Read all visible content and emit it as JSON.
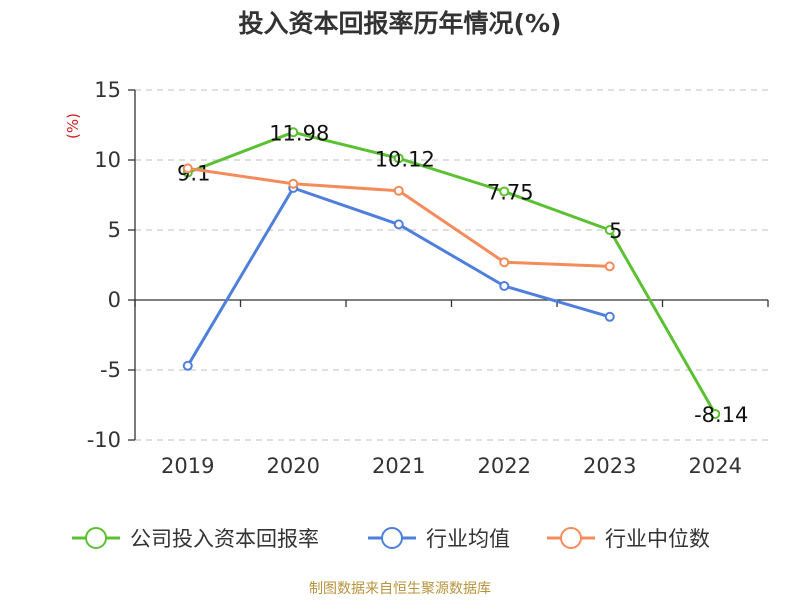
{
  "chart_data": {
    "type": "line",
    "title": "投入资本回报率历年情况(%)",
    "ylabel": "(%)",
    "xlabel": "",
    "x": [
      "2019",
      "2020",
      "2021",
      "2022",
      "2023",
      "2024"
    ],
    "ylim": [
      -10,
      15
    ],
    "yticks": [
      "15",
      "10",
      "5",
      "0",
      "-5",
      "-10"
    ],
    "grid": true,
    "legend_position": "bottom",
    "series": [
      {
        "name": "公司投入资本回报率",
        "color": "#5bc132",
        "values": [
          9.1,
          11.98,
          10.12,
          7.75,
          5,
          -8.14
        ],
        "labels": [
          "9.1",
          "11.98",
          "10.12",
          "7.75",
          "5",
          "-8.14"
        ]
      },
      {
        "name": "行业均值",
        "color": "#4f7fdc",
        "values": [
          -4.7,
          8.0,
          5.4,
          1.0,
          -1.2,
          null
        ]
      },
      {
        "name": "行业中位数",
        "color": "#f38c5a",
        "values": [
          9.4,
          8.3,
          7.8,
          2.7,
          2.4,
          null
        ]
      }
    ]
  },
  "source": "制图数据来自恒生聚源数据库"
}
